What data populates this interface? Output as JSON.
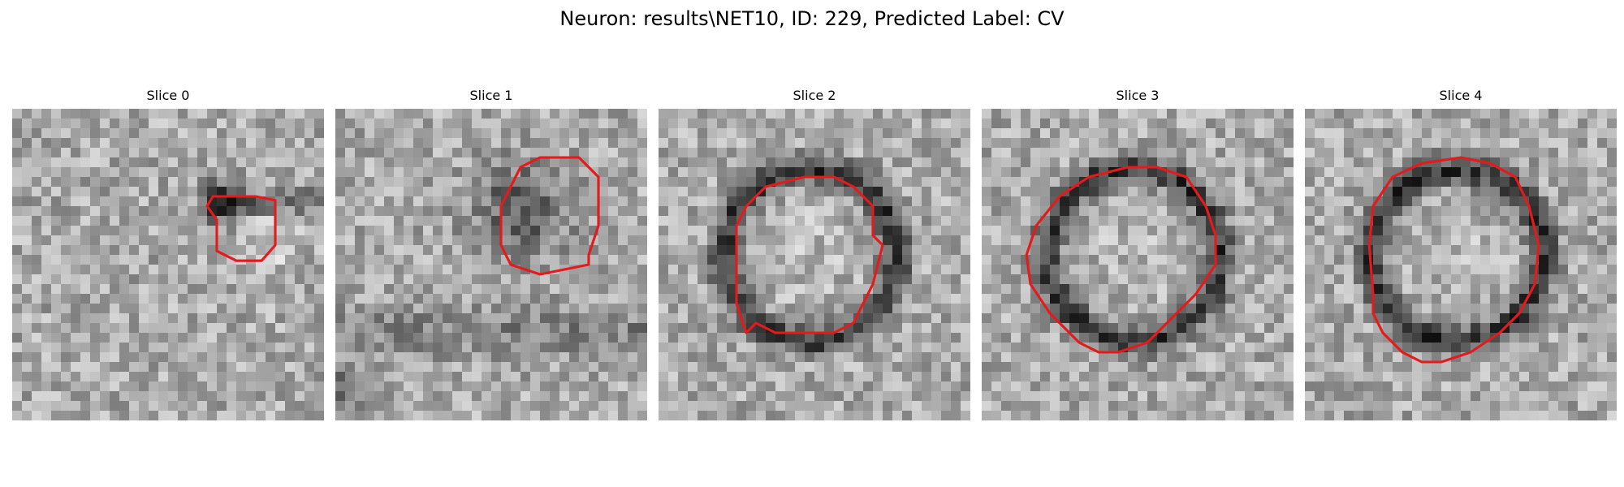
{
  "figure": {
    "title": "Neuron: results\\NET10, ID: 229, Predicted Label: CV",
    "contour_color": "#e41a1c"
  },
  "slices": [
    {
      "title": "Slice 0",
      "shape": "small-blob",
      "contour": [
        [
          10.5,
          5.7
        ],
        [
          10.5,
          7.3
        ],
        [
          11.5,
          7.8
        ],
        [
          12.8,
          7.8
        ],
        [
          13.5,
          7.0
        ],
        [
          13.5,
          4.7
        ],
        [
          12.5,
          4.5
        ],
        [
          10.3,
          4.5
        ],
        [
          10.0,
          5.0
        ]
      ]
    },
    {
      "title": "Slice 1",
      "shape": "diffuse-blob",
      "contour": [
        [
          13.0,
          8.0
        ],
        [
          10.5,
          8.5
        ],
        [
          9.0,
          8.0
        ],
        [
          8.5,
          7.0
        ],
        [
          8.5,
          5.0
        ],
        [
          9.5,
          3.0
        ],
        [
          10.5,
          2.5
        ],
        [
          12.5,
          2.5
        ],
        [
          13.5,
          3.5
        ],
        [
          13.5,
          6.0
        ],
        [
          13.0,
          7.5
        ]
      ]
    },
    {
      "title": "Slice 2",
      "shape": "ring",
      "contour": [
        [
          4.5,
          11.5
        ],
        [
          4.0,
          10.0
        ],
        [
          4.0,
          6.0
        ],
        [
          4.5,
          5.0
        ],
        [
          5.5,
          4.0
        ],
        [
          7.5,
          3.5
        ],
        [
          9.0,
          3.5
        ],
        [
          10.0,
          4.0
        ],
        [
          11.0,
          5.0
        ],
        [
          11.0,
          6.5
        ],
        [
          11.5,
          7.0
        ],
        [
          11.0,
          9.0
        ],
        [
          10.5,
          10.0
        ],
        [
          10.0,
          11.0
        ],
        [
          9.0,
          11.5
        ],
        [
          6.0,
          11.5
        ],
        [
          5.0,
          11.0
        ]
      ]
    },
    {
      "title": "Slice 3",
      "shape": "ring",
      "contour": [
        [
          5.0,
          12.0
        ],
        [
          3.5,
          10.5
        ],
        [
          2.5,
          9.0
        ],
        [
          2.3,
          7.5
        ],
        [
          2.8,
          6.0
        ],
        [
          4.0,
          4.5
        ],
        [
          5.5,
          3.5
        ],
        [
          7.5,
          3.0
        ],
        [
          9.0,
          3.0
        ],
        [
          10.5,
          3.5
        ],
        [
          11.5,
          5.0
        ],
        [
          12.0,
          6.5
        ],
        [
          12.0,
          8.0
        ],
        [
          11.0,
          9.5
        ],
        [
          9.5,
          11.0
        ],
        [
          8.5,
          12.0
        ],
        [
          7.0,
          12.5
        ],
        [
          6.0,
          12.5
        ]
      ]
    },
    {
      "title": "Slice 4",
      "shape": "ring",
      "contour": [
        [
          5.0,
          12.5
        ],
        [
          4.0,
          11.5
        ],
        [
          3.5,
          10.5
        ],
        [
          3.5,
          9.5
        ],
        [
          3.3,
          7.0
        ],
        [
          3.5,
          5.0
        ],
        [
          4.5,
          3.5
        ],
        [
          6.0,
          2.8
        ],
        [
          8.0,
          2.5
        ],
        [
          9.5,
          2.8
        ],
        [
          10.8,
          3.5
        ],
        [
          11.5,
          5.0
        ],
        [
          12.0,
          7.0
        ],
        [
          11.8,
          9.0
        ],
        [
          11.0,
          10.5
        ],
        [
          10.0,
          11.5
        ],
        [
          8.5,
          12.5
        ],
        [
          7.0,
          13.0
        ],
        [
          6.0,
          13.0
        ]
      ]
    }
  ]
}
